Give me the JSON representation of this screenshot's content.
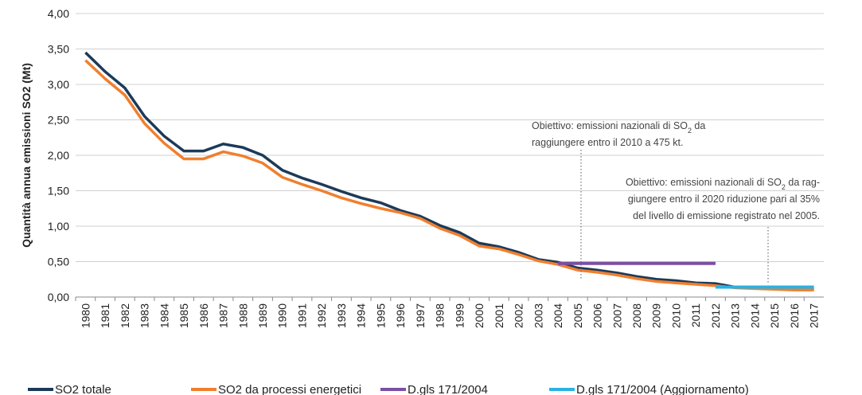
{
  "chart_data": {
    "type": "line",
    "y_label": "Quantità annua emissioni  SO2 (Mt)",
    "categories": [
      "1980",
      "1981",
      "1982",
      "1983",
      "1984",
      "1985",
      "1986",
      "1987",
      "1988",
      "1989",
      "1990",
      "1991",
      "1992",
      "1993",
      "1994",
      "1995",
      "1996",
      "1997",
      "1998",
      "1999",
      "2000",
      "2001",
      "2002",
      "2003",
      "2004",
      "2005",
      "2006",
      "2007",
      "2008",
      "2009",
      "2010",
      "2011",
      "2012",
      "2013",
      "2014",
      "2015",
      "2016",
      "2017"
    ],
    "series": [
      {
        "name": "SO2 totale",
        "color": "#1c3a5a",
        "values": [
          3.45,
          3.18,
          2.95,
          2.55,
          2.27,
          2.06,
          2.06,
          2.16,
          2.11,
          2.0,
          1.79,
          1.68,
          1.59,
          1.49,
          1.4,
          1.33,
          1.22,
          1.14,
          1.01,
          0.91,
          0.76,
          0.71,
          0.63,
          0.53,
          0.49,
          0.41,
          0.38,
          0.34,
          0.29,
          0.25,
          0.23,
          0.2,
          0.19,
          0.14,
          0.13,
          0.12,
          0.11,
          0.11
        ]
      },
      {
        "name": "SO2 da processi energetici",
        "color": "#f07f2e",
        "values": [
          3.34,
          3.08,
          2.85,
          2.45,
          2.17,
          1.95,
          1.95,
          2.05,
          1.99,
          1.89,
          1.69,
          1.59,
          1.5,
          1.4,
          1.32,
          1.25,
          1.19,
          1.11,
          0.97,
          0.87,
          0.72,
          0.68,
          0.6,
          0.51,
          0.46,
          0.38,
          0.35,
          0.31,
          0.26,
          0.22,
          0.2,
          0.18,
          0.16,
          0.13,
          0.12,
          0.11,
          0.1,
          0.1
        ]
      },
      {
        "name": "D.gls 171/2004",
        "color": "#7b4fa3",
        "values": [
          null,
          null,
          null,
          null,
          null,
          null,
          null,
          null,
          null,
          null,
          null,
          null,
          null,
          null,
          null,
          null,
          null,
          null,
          null,
          null,
          null,
          null,
          null,
          null,
          0.475,
          0.475,
          0.475,
          0.475,
          0.475,
          0.475,
          0.475,
          0.475,
          0.475,
          null,
          null,
          null,
          null,
          null
        ]
      },
      {
        "name": "D.gls 171/2004 (Aggiornamento)",
        "color": "#2ab2e3",
        "values": [
          null,
          null,
          null,
          null,
          null,
          null,
          null,
          null,
          null,
          null,
          null,
          null,
          null,
          null,
          null,
          null,
          null,
          null,
          null,
          null,
          null,
          null,
          null,
          null,
          null,
          null,
          null,
          null,
          null,
          null,
          null,
          null,
          0.14,
          0.14,
          0.14,
          0.14,
          0.14,
          0.14
        ]
      }
    ],
    "ylim": [
      0,
      4
    ],
    "yticks": [
      {
        "value": 0,
        "label": "0,00"
      },
      {
        "value": 0.5,
        "label": "0,50"
      },
      {
        "value": 1,
        "label": "1,00"
      },
      {
        "value": 1.5,
        "label": "1,50"
      },
      {
        "value": 2,
        "label": "2,00"
      },
      {
        "value": 2.5,
        "label": "2,50"
      },
      {
        "value": 3,
        "label": "3,00"
      },
      {
        "value": 3.5,
        "label": "3,50"
      },
      {
        "value": 4,
        "label": "4,00"
      }
    ],
    "grid": true,
    "annotations": [
      {
        "lines": [
          [
            "Obiettivo: emissioni nazionali di SO",
            "2",
            " da"
          ],
          [
            "raggiungere entro il 2010 a 475 kt."
          ]
        ]
      },
      {
        "lines": [
          [
            "Obiettivo: emissioni nazionali di SO",
            "2",
            " da rag-"
          ],
          [
            "giungere entro il 2020 riduzione pari al 35%"
          ],
          [
            "del livello di emissione registrato nel 2005."
          ]
        ]
      }
    ]
  }
}
